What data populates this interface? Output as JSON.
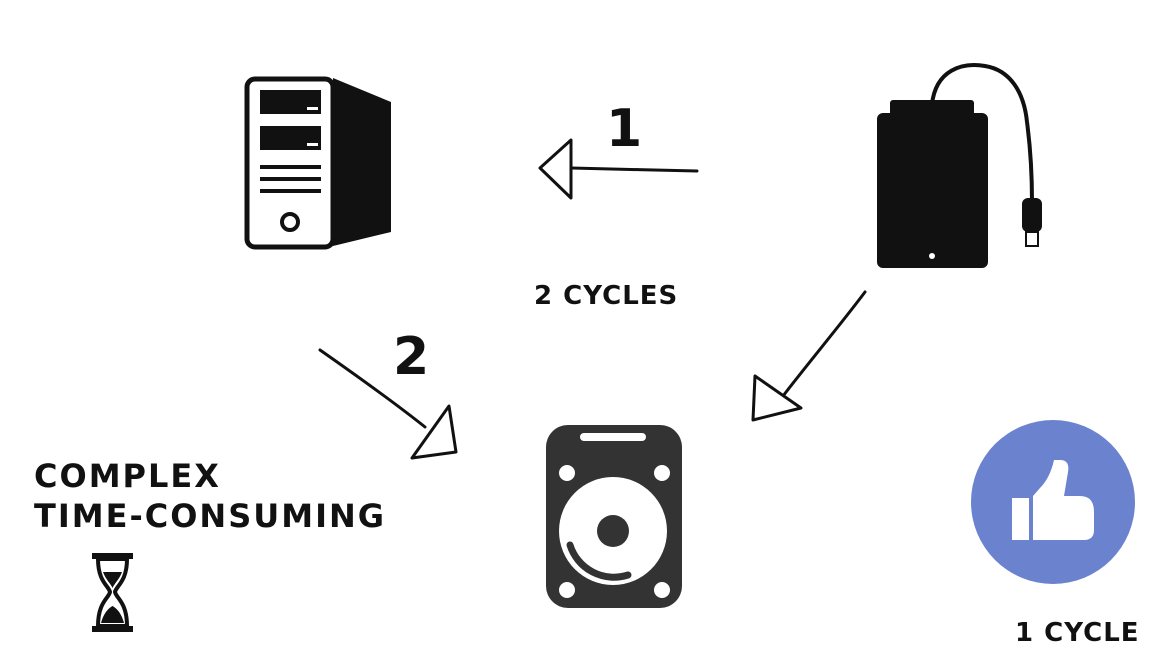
{
  "step_one": "1",
  "step_two": "2",
  "two_cycles": "2 CYCLES",
  "one_cycle": "1 CYCLE",
  "note_line_1": "COMPLEX",
  "note_line_2": "TIME-CONSUMING",
  "icons": {
    "computer": "desktop-tower-icon",
    "external_drive": "external-drive-icon",
    "hard_drive": "hard-disk-icon",
    "hourglass": "hourglass-icon",
    "approval": "thumbs-up-icon"
  },
  "colors": {
    "ink": "#111111",
    "thumbs_circle": "#6b82cf"
  }
}
